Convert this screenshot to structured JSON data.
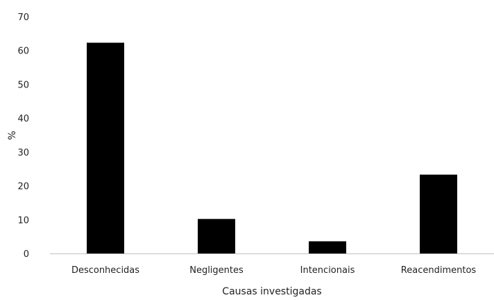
{
  "chart_data": {
    "type": "bar",
    "title": "",
    "xlabel": "Causas investigadas",
    "ylabel": "%",
    "categories": [
      "Desconhecidas",
      "Negligentes",
      "Intencionais",
      "Reacendimentos"
    ],
    "values": [
      62.3,
      10.2,
      3.6,
      23.3
    ],
    "ylim": [
      0,
      70
    ],
    "yticks": [
      "0",
      "10",
      "20",
      "30",
      "40",
      "50",
      "60",
      "70"
    ],
    "grid": false,
    "legend": "none",
    "bar_color": "#000000",
    "axis_color": "#bfbfbf"
  }
}
